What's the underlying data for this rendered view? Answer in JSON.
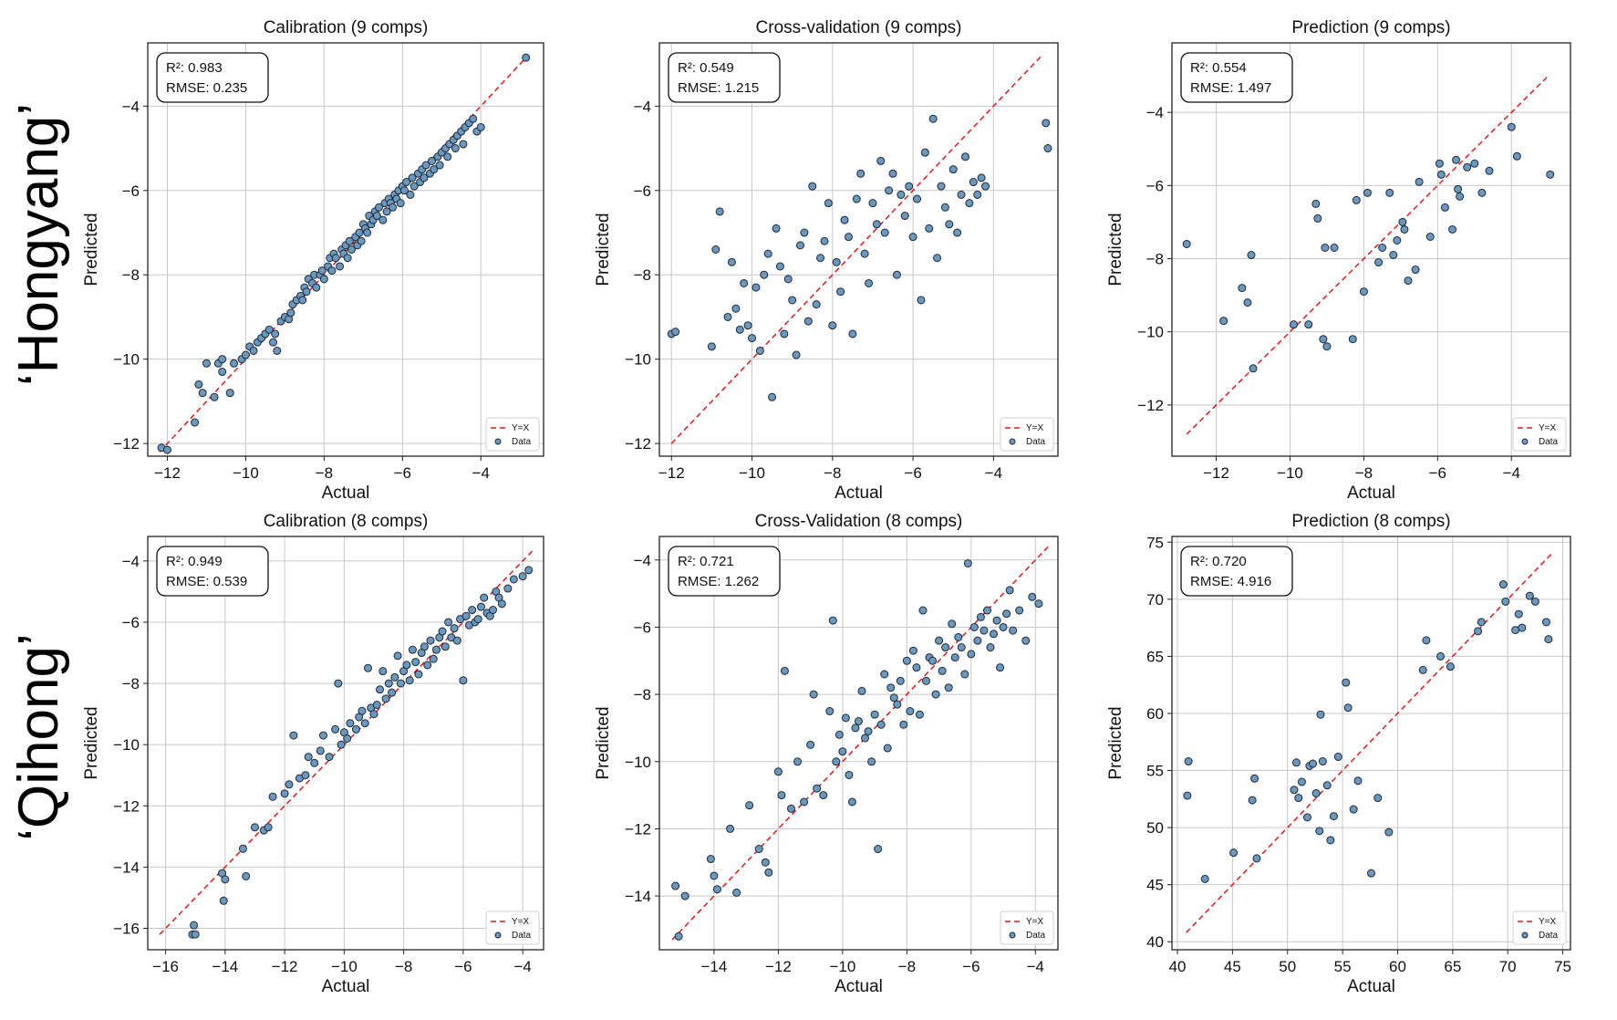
{
  "row_labels": [
    "‘Hongyang’",
    "‘Qihong’"
  ],
  "legend": {
    "line": "Y=X",
    "points": "Data"
  },
  "colors": {
    "points": "#6b98bf",
    "point_edge": "#1e2a38",
    "diagonal": "#e41a1c",
    "grid": "#c8c8c8"
  },
  "chart_data": [
    {
      "type": "scatter",
      "title": "Calibration (9 comps)",
      "xlabel": "Actual",
      "ylabel": "Predicted",
      "stats": {
        "r2": "R²: 0.983",
        "rmse": "RMSE: 0.235"
      },
      "xlim": [
        -12.5,
        -2.4
      ],
      "ylim": [
        -12.3,
        -2.5
      ],
      "xticks": [
        -12,
        -10,
        -8,
        -6,
        -4
      ],
      "yticks": [
        -12,
        -10,
        -8,
        -6,
        -4
      ],
      "diagonal": [
        -12.2,
        -2.8
      ],
      "grid": true,
      "legend_position": "lower-right",
      "x": [
        -12.15,
        -12.0,
        -11.3,
        -11.2,
        -11.1,
        -11.0,
        -10.8,
        -10.7,
        -10.6,
        -10.6,
        -10.4,
        -10.3,
        -10.1,
        -10.0,
        -9.9,
        -9.8,
        -9.7,
        -9.6,
        -9.5,
        -9.4,
        -9.3,
        -9.25,
        -9.2,
        -9.1,
        -9.0,
        -8.9,
        -8.85,
        -8.8,
        -8.7,
        -8.6,
        -8.55,
        -8.5,
        -8.45,
        -8.4,
        -8.3,
        -8.25,
        -8.2,
        -8.1,
        -8.05,
        -8.0,
        -7.9,
        -7.85,
        -7.8,
        -7.75,
        -7.7,
        -7.6,
        -7.55,
        -7.5,
        -7.45,
        -7.4,
        -7.35,
        -7.3,
        -7.2,
        -7.15,
        -7.1,
        -7.05,
        -7.0,
        -6.95,
        -6.9,
        -6.85,
        -6.8,
        -6.75,
        -6.7,
        -6.65,
        -6.6,
        -6.5,
        -6.45,
        -6.4,
        -6.35,
        -6.3,
        -6.25,
        -6.2,
        -6.15,
        -6.1,
        -6.05,
        -6.0,
        -5.95,
        -5.9,
        -5.8,
        -5.75,
        -5.7,
        -5.6,
        -5.55,
        -5.5,
        -5.45,
        -5.4,
        -5.3,
        -5.25,
        -5.2,
        -5.1,
        -5.05,
        -5.0,
        -4.9,
        -4.85,
        -4.8,
        -4.7,
        -4.65,
        -4.6,
        -4.5,
        -4.45,
        -4.4,
        -4.3,
        -4.2,
        -4.1,
        -4.0,
        -2.85
      ],
      "y": [
        -12.1,
        -12.15,
        -11.5,
        -10.6,
        -10.8,
        -10.1,
        -10.9,
        -10.1,
        -10.3,
        -10.0,
        -10.8,
        -10.1,
        -10.0,
        -9.9,
        -9.7,
        -9.8,
        -9.6,
        -9.5,
        -9.4,
        -9.3,
        -9.6,
        -9.4,
        -9.8,
        -9.1,
        -9.0,
        -9.05,
        -8.9,
        -8.7,
        -8.6,
        -8.5,
        -8.6,
        -8.3,
        -8.4,
        -8.1,
        -8.2,
        -8.0,
        -8.3,
        -8.0,
        -7.9,
        -8.1,
        -7.8,
        -7.6,
        -7.9,
        -7.5,
        -7.6,
        -7.8,
        -7.4,
        -7.5,
        -7.3,
        -7.6,
        -7.2,
        -7.4,
        -7.1,
        -7.3,
        -7.0,
        -7.2,
        -6.8,
        -6.9,
        -7.0,
        -6.6,
        -6.8,
        -6.7,
        -6.5,
        -6.6,
        -6.4,
        -6.7,
        -6.3,
        -6.5,
        -6.2,
        -6.3,
        -6.4,
        -6.1,
        -6.2,
        -6.0,
        -6.3,
        -5.9,
        -6.0,
        -5.8,
        -6.1,
        -5.7,
        -5.9,
        -5.6,
        -5.8,
        -5.5,
        -5.7,
        -5.4,
        -5.6,
        -5.3,
        -5.5,
        -5.2,
        -5.4,
        -5.1,
        -5.0,
        -5.2,
        -4.9,
        -4.8,
        -5.0,
        -4.7,
        -4.6,
        -4.9,
        -4.5,
        -4.4,
        -4.3,
        -4.6,
        -4.5,
        -2.85
      ]
    },
    {
      "type": "scatter",
      "title": "Cross-validation (9 comps)",
      "xlabel": "Actual",
      "ylabel": "Predicted",
      "stats": {
        "r2": "R²: 0.549",
        "rmse": "RMSE: 1.215"
      },
      "xlim": [
        -12.3,
        -2.4
      ],
      "ylim": [
        -12.3,
        -2.5
      ],
      "xticks": [
        -12,
        -10,
        -8,
        -6,
        -4
      ],
      "yticks": [
        -12,
        -10,
        -8,
        -6,
        -4
      ],
      "diagonal": [
        -12.0,
        -2.8
      ],
      "grid": true,
      "legend_position": "lower-right",
      "x": [
        -12.0,
        -11.9,
        -11.0,
        -10.9,
        -10.8,
        -10.6,
        -10.5,
        -10.4,
        -10.3,
        -10.2,
        -10.1,
        -10.0,
        -9.9,
        -9.8,
        -9.7,
        -9.6,
        -9.5,
        -9.4,
        -9.3,
        -9.2,
        -9.1,
        -9.0,
        -8.9,
        -8.8,
        -8.7,
        -8.6,
        -8.5,
        -8.4,
        -8.3,
        -8.2,
        -8.1,
        -8.0,
        -7.9,
        -7.8,
        -7.7,
        -7.6,
        -7.5,
        -7.4,
        -7.3,
        -7.2,
        -7.1,
        -7.0,
        -6.9,
        -6.8,
        -6.7,
        -6.6,
        -6.5,
        -6.4,
        -6.3,
        -6.2,
        -6.1,
        -6.0,
        -5.9,
        -5.8,
        -5.7,
        -5.6,
        -5.5,
        -5.4,
        -5.3,
        -5.2,
        -5.1,
        -5.0,
        -4.9,
        -4.8,
        -4.7,
        -4.6,
        -4.5,
        -4.4,
        -4.3,
        -4.2,
        -2.7,
        -2.65
      ],
      "y": [
        -9.4,
        -9.35,
        -9.7,
        -7.4,
        -6.5,
        -9.0,
        -7.7,
        -8.8,
        -9.3,
        -8.2,
        -9.2,
        -9.5,
        -8.3,
        -9.8,
        -8.0,
        -7.5,
        -10.9,
        -6.9,
        -7.8,
        -9.4,
        -8.1,
        -8.6,
        -9.9,
        -7.3,
        -7.0,
        -9.1,
        -5.9,
        -8.7,
        -7.6,
        -7.2,
        -6.3,
        -9.2,
        -7.7,
        -8.4,
        -6.7,
        -7.1,
        -9.4,
        -6.2,
        -5.6,
        -7.5,
        -8.2,
        -6.3,
        -6.8,
        -5.3,
        -7.0,
        -6.0,
        -5.6,
        -8.0,
        -6.1,
        -6.6,
        -5.9,
        -7.1,
        -6.2,
        -8.6,
        -5.1,
        -6.9,
        -4.3,
        -7.6,
        -5.9,
        -6.4,
        -6.8,
        -5.5,
        -7.0,
        -6.1,
        -5.2,
        -6.3,
        -5.8,
        -6.1,
        -5.7,
        -5.9,
        -4.4,
        -5.0
      ]
    },
    {
      "type": "scatter",
      "title": "Prediction (9 comps)",
      "xlabel": "Actual",
      "ylabel": "Predicted",
      "stats": {
        "r2": "R²: 0.554",
        "rmse": "RMSE: 1.497"
      },
      "xlim": [
        -13.2,
        -2.4
      ],
      "ylim": [
        -13.4,
        -2.1
      ],
      "xticks": [
        -12,
        -10,
        -8,
        -6,
        -4
      ],
      "yticks": [
        -12,
        -10,
        -8,
        -6,
        -4
      ],
      "diagonal": [
        -12.8,
        -3.0
      ],
      "grid": true,
      "legend_position": "lower-right",
      "x": [
        -12.8,
        -11.8,
        -11.3,
        -11.15,
        -11.05,
        -11.0,
        -9.9,
        -9.5,
        -9.3,
        -9.25,
        -9.1,
        -9.05,
        -9.0,
        -8.8,
        -8.3,
        -8.2,
        -8.0,
        -7.9,
        -7.6,
        -7.5,
        -7.3,
        -7.2,
        -7.1,
        -6.95,
        -6.9,
        -6.8,
        -6.6,
        -6.5,
        -6.2,
        -5.95,
        -5.9,
        -5.8,
        -5.6,
        -5.5,
        -5.45,
        -5.4,
        -5.2,
        -5.0,
        -4.8,
        -4.6,
        -4.0,
        -3.85,
        -2.95
      ],
      "y": [
        -7.6,
        -9.7,
        -8.8,
        -9.2,
        -7.9,
        -11.0,
        -9.8,
        -9.8,
        -6.5,
        -6.9,
        -10.2,
        -7.7,
        -10.4,
        -7.7,
        -10.2,
        -6.4,
        -8.9,
        -6.2,
        -8.1,
        -7.7,
        -6.2,
        -7.9,
        -7.5,
        -7.0,
        -7.2,
        -8.6,
        -8.3,
        -5.9,
        -7.4,
        -5.4,
        -5.7,
        -6.6,
        -7.2,
        -5.3,
        -6.1,
        -6.3,
        -5.5,
        -5.4,
        -6.2,
        -5.6,
        -4.4,
        -5.2,
        -5.7
      ]
    },
    {
      "type": "scatter",
      "title": "Calibration (8 comps)",
      "xlabel": "Actual",
      "ylabel": "Predicted",
      "stats": {
        "r2": "R²: 0.949",
        "rmse": "RMSE: 0.539"
      },
      "xlim": [
        -16.6,
        -3.3
      ],
      "ylim": [
        -16.7,
        -3.2
      ],
      "xticks": [
        -16,
        -14,
        -12,
        -10,
        -8,
        -6,
        -4
      ],
      "yticks": [
        -16,
        -14,
        -12,
        -10,
        -8,
        -6,
        -4
      ],
      "diagonal": [
        -16.2,
        -3.6
      ],
      "grid": true,
      "legend_position": "lower-right",
      "x": [
        -15.1,
        -15.05,
        -15.0,
        -14.1,
        -14.05,
        -14.0,
        -13.4,
        -13.3,
        -13.0,
        -12.7,
        -12.55,
        -12.4,
        -12.0,
        -11.85,
        -11.7,
        -11.5,
        -11.3,
        -11.2,
        -11.0,
        -10.8,
        -10.7,
        -10.5,
        -10.3,
        -10.2,
        -10.1,
        -10.0,
        -9.9,
        -9.8,
        -9.6,
        -9.5,
        -9.4,
        -9.3,
        -9.2,
        -9.1,
        -9.0,
        -8.9,
        -8.8,
        -8.7,
        -8.6,
        -8.5,
        -8.4,
        -8.3,
        -8.2,
        -8.1,
        -8.0,
        -7.9,
        -7.8,
        -7.7,
        -7.6,
        -7.5,
        -7.4,
        -7.3,
        -7.2,
        -7.1,
        -7.0,
        -6.9,
        -6.8,
        -6.7,
        -6.6,
        -6.5,
        -6.4,
        -6.3,
        -6.2,
        -6.1,
        -6.0,
        -5.9,
        -5.8,
        -5.7,
        -5.6,
        -5.5,
        -5.4,
        -5.3,
        -5.2,
        -5.1,
        -5.0,
        -4.9,
        -4.8,
        -4.7,
        -4.5,
        -4.3,
        -4.0,
        -3.8
      ],
      "y": [
        -16.2,
        -15.9,
        -16.2,
        -14.2,
        -15.1,
        -14.4,
        -13.4,
        -14.3,
        -12.7,
        -12.8,
        -12.7,
        -11.7,
        -11.6,
        -11.3,
        -9.7,
        -11.1,
        -11.0,
        -10.4,
        -10.6,
        -10.2,
        -9.7,
        -10.4,
        -9.5,
        -8.0,
        -10.0,
        -9.6,
        -9.8,
        -9.3,
        -9.5,
        -9.1,
        -8.9,
        -9.3,
        -7.5,
        -8.8,
        -9.0,
        -8.7,
        -8.2,
        -7.6,
        -8.5,
        -8.0,
        -8.3,
        -7.8,
        -7.1,
        -8.0,
        -7.6,
        -7.4,
        -7.9,
        -6.9,
        -7.3,
        -7.7,
        -7.0,
        -6.8,
        -7.4,
        -6.6,
        -7.2,
        -6.9,
        -6.5,
        -6.3,
        -6.8,
        -6.0,
        -6.5,
        -6.2,
        -6.6,
        -5.9,
        -7.9,
        -5.8,
        -6.1,
        -5.6,
        -6.0,
        -5.9,
        -5.5,
        -5.2,
        -5.7,
        -5.8,
        -5.6,
        -5.0,
        -5.2,
        -5.4,
        -4.9,
        -4.6,
        -4.5,
        -4.3
      ]
    },
    {
      "type": "scatter",
      "title": "Cross-Validation (8 comps)",
      "xlabel": "Actual",
      "ylabel": "Predicted",
      "stats": {
        "r2": "R²: 0.721",
        "rmse": "RMSE: 1.262"
      },
      "xlim": [
        -15.7,
        -3.3
      ],
      "ylim": [
        -15.6,
        -3.3
      ],
      "xticks": [
        -14,
        -12,
        -10,
        -8,
        -6,
        -4
      ],
      "yticks": [
        -14,
        -12,
        -10,
        -8,
        -6,
        -4
      ],
      "diagonal": [
        -15.3,
        -3.6
      ],
      "grid": true,
      "legend_position": "lower-right",
      "x": [
        -15.2,
        -15.1,
        -14.9,
        -14.1,
        -14.0,
        -13.9,
        -13.5,
        -13.3,
        -12.9,
        -12.6,
        -12.4,
        -12.3,
        -12.0,
        -11.9,
        -11.8,
        -11.6,
        -11.4,
        -11.2,
        -11.0,
        -10.9,
        -10.8,
        -10.6,
        -10.4,
        -10.3,
        -10.2,
        -10.1,
        -10.0,
        -9.9,
        -9.8,
        -9.7,
        -9.6,
        -9.5,
        -9.4,
        -9.3,
        -9.2,
        -9.1,
        -9.0,
        -8.9,
        -8.8,
        -8.7,
        -8.6,
        -8.5,
        -8.4,
        -8.3,
        -8.2,
        -8.1,
        -8.0,
        -7.9,
        -7.8,
        -7.7,
        -7.6,
        -7.5,
        -7.4,
        -7.3,
        -7.2,
        -7.1,
        -7.0,
        -6.9,
        -6.8,
        -6.7,
        -6.6,
        -6.5,
        -6.4,
        -6.3,
        -6.2,
        -6.1,
        -6.0,
        -5.9,
        -5.8,
        -5.7,
        -5.6,
        -5.5,
        -5.4,
        -5.3,
        -5.2,
        -5.1,
        -5.0,
        -4.9,
        -4.8,
        -4.7,
        -4.5,
        -4.3,
        -4.1,
        -3.9
      ],
      "y": [
        -13.7,
        -15.2,
        -14.0,
        -12.9,
        -13.4,
        -13.8,
        -12.0,
        -13.9,
        -11.3,
        -12.6,
        -13.0,
        -13.3,
        -10.3,
        -11.0,
        -7.3,
        -11.4,
        -10.0,
        -11.2,
        -9.5,
        -8.0,
        -10.8,
        -11.0,
        -8.5,
        -5.8,
        -10.0,
        -9.2,
        -9.7,
        -8.7,
        -10.4,
        -11.2,
        -9.0,
        -8.8,
        -7.9,
        -9.3,
        -9.1,
        -10.0,
        -8.6,
        -12.6,
        -8.9,
        -7.4,
        -9.6,
        -7.8,
        -8.1,
        -8.3,
        -7.6,
        -8.9,
        -7.0,
        -8.5,
        -6.7,
        -7.2,
        -8.6,
        -5.5,
        -7.6,
        -6.9,
        -7.0,
        -8.0,
        -6.4,
        -7.3,
        -6.6,
        -7.8,
        -5.9,
        -6.9,
        -6.3,
        -6.6,
        -7.4,
        -4.1,
        -6.8,
        -6.0,
        -6.4,
        -5.7,
        -6.1,
        -5.5,
        -6.6,
        -6.2,
        -5.8,
        -7.2,
        -6.0,
        -5.6,
        -4.9,
        -6.1,
        -5.5,
        -6.4,
        -5.1,
        -5.3
      ]
    },
    {
      "type": "scatter",
      "title": "Prediction (8 comps)",
      "xlabel": "Actual",
      "ylabel": "Predicted",
      "stats": {
        "r2": "R²: 0.720",
        "rmse": "RMSE: 4.916"
      },
      "xlim": [
        39.5,
        75.7
      ],
      "ylim": [
        39.3,
        75.5
      ],
      "xticks": [
        40,
        45,
        50,
        55,
        60,
        65,
        70,
        75
      ],
      "yticks": [
        40,
        45,
        50,
        55,
        60,
        65,
        70,
        75
      ],
      "diagonal": [
        40.8,
        74.0
      ],
      "grid": true,
      "legend_position": "lower-right",
      "x": [
        40.9,
        41.0,
        42.5,
        45.1,
        46.8,
        47.0,
        47.2,
        50.6,
        50.8,
        51.0,
        51.3,
        51.8,
        52.0,
        52.3,
        52.6,
        52.9,
        53.0,
        53.2,
        53.6,
        53.9,
        54.2,
        54.6,
        55.3,
        55.5,
        56.0,
        56.4,
        57.6,
        58.2,
        59.2,
        62.3,
        62.6,
        63.9,
        64.8,
        67.3,
        67.6,
        69.6,
        69.8,
        70.7,
        71.0,
        71.3,
        72.0,
        72.5,
        73.5,
        73.7
      ],
      "y": [
        52.8,
        55.8,
        45.5,
        47.8,
        52.4,
        54.3,
        47.3,
        53.3,
        55.7,
        52.6,
        54.0,
        50.9,
        55.4,
        55.6,
        53.0,
        49.7,
        59.9,
        55.8,
        53.7,
        48.9,
        51.0,
        56.2,
        62.7,
        60.5,
        51.6,
        54.1,
        46.0,
        52.6,
        49.6,
        63.8,
        66.4,
        65.0,
        64.1,
        67.2,
        68.0,
        71.3,
        69.8,
        67.3,
        68.7,
        67.5,
        70.3,
        69.8,
        68.0,
        66.5
      ]
    }
  ]
}
